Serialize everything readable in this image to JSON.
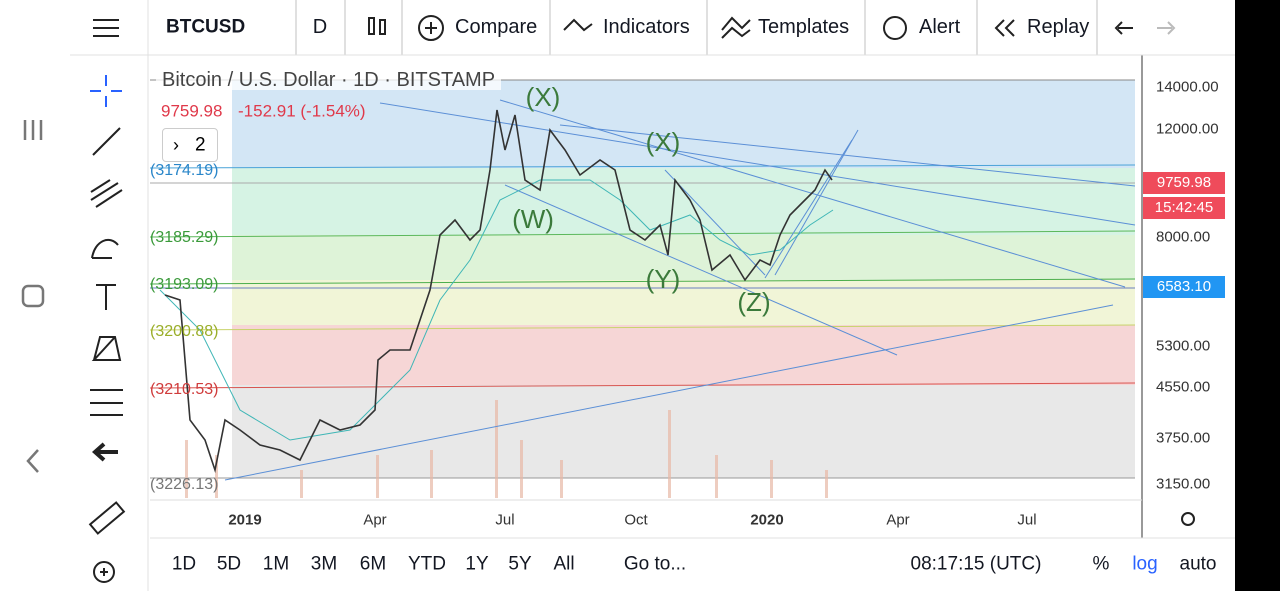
{
  "toolbar": {
    "symbol": "BTCUSD",
    "interval": "D",
    "compare": "Compare",
    "indicators": "Indicators",
    "templates": "Templates",
    "alert": "Alert",
    "replay": "Replay"
  },
  "legend": {
    "title": "Bitcoin / U.S. Dollar · 1D · BITSTAMP",
    "price": "9759.98",
    "change": "-152.91 (-1.54%)",
    "collapsed": "2"
  },
  "fib_labels": [
    "(3174.19)",
    "(3185.29)",
    "(3193.09)",
    "(3200.88)",
    "(3210.53)",
    "(3226.13)"
  ],
  "wave_labels": [
    "(X)",
    "(X)",
    "(W)",
    "(Y)",
    "(Z)"
  ],
  "price_axis": {
    "ticks": [
      "14000.00",
      "12000.00",
      "8000.00",
      "5300.00",
      "4550.00",
      "3750.00",
      "3150.00"
    ],
    "last_price": "9759.98",
    "countdown": "15:42:45",
    "marker": "6583.10"
  },
  "time_axis": [
    "2019",
    "Apr",
    "Jul",
    "Oct",
    "2020",
    "Apr",
    "Jul"
  ],
  "bottom_bar": {
    "ranges": [
      "1D",
      "5D",
      "1M",
      "3M",
      "6M",
      "YTD",
      "1Y",
      "5Y",
      "All"
    ],
    "goto": "Go to...",
    "clock": "08:17:15 (UTC)",
    "percent": "%",
    "log": "log",
    "auto": "auto"
  }
}
